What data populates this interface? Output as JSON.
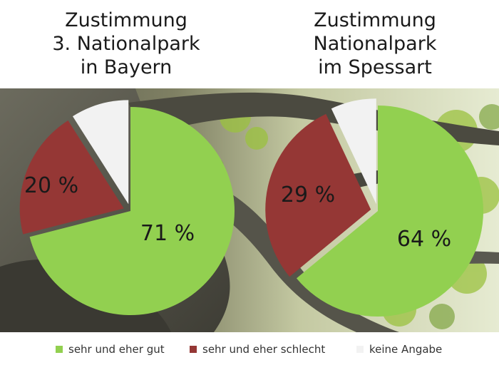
{
  "chart_data": [
    {
      "type": "pie",
      "title": [
        "Zustimmung",
        "3. Nationalpark",
        "in Bayern"
      ],
      "categories": [
        "sehr und eher gut",
        "sehr und eher schlecht",
        "keine Angabe"
      ],
      "values": [
        71,
        20,
        9
      ],
      "labels": [
        "71 %",
        "20 %",
        ""
      ],
      "colors": [
        "#92d050",
        "#953735",
        "#f2f2f2"
      ],
      "start": "12 o'clock, clockwise",
      "exploded": true
    },
    {
      "type": "pie",
      "title": [
        "Zustimmung",
        "Nationalpark",
        "im Spessart"
      ],
      "categories": [
        "sehr und eher gut",
        "sehr und eher schlecht",
        "keine Angabe"
      ],
      "values": [
        64,
        29,
        7
      ],
      "labels": [
        "64 %",
        "29 %",
        ""
      ],
      "colors": [
        "#92d050",
        "#953735",
        "#f2f2f2"
      ],
      "start": "12 o'clock, clockwise",
      "exploded": true
    }
  ],
  "legend": [
    {
      "label": "sehr und eher gut",
      "color": "#92d050"
    },
    {
      "label": "sehr und eher schlecht",
      "color": "#953735"
    },
    {
      "label": "keine Angabe",
      "color": "#f2f2f2"
    }
  ],
  "background": {
    "description_color": "#4a4a42"
  }
}
